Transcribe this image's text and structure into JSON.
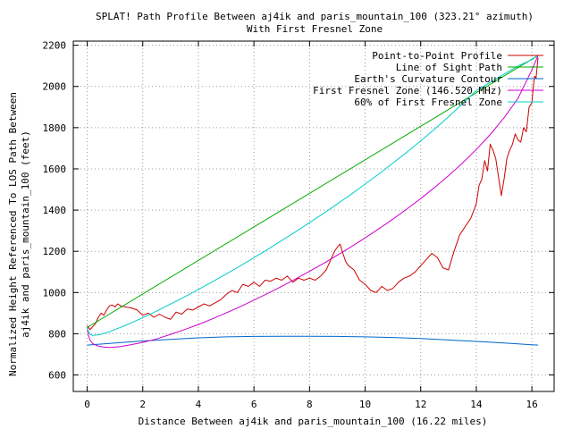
{
  "chart_data": {
    "type": "line",
    "title": "SPLAT! Path Profile Between aj4ik and paris_mountain_100 (323.21° azimuth)",
    "subtitle": "With First Fresnel Zone",
    "xlabel": "Distance Between aj4ik and paris_mountain_100 (16.22 miles)",
    "ylabel": "Normalized Height Referenced To LOS Path Between",
    "ylabel2": "aj4ik and paris_mountain_100 (feet)",
    "xlim": [
      -0.5,
      16.8
    ],
    "ylim": [
      520,
      2220
    ],
    "x_ticks": [
      "0",
      "2",
      "4",
      "6",
      "8",
      "10",
      "12",
      "14",
      "16"
    ],
    "y_ticks": [
      "600",
      "800",
      "1000",
      "1200",
      "1400",
      "1600",
      "1800",
      "2000",
      "2200"
    ],
    "grid": true,
    "legend_position": "top-right",
    "series": [
      {
        "name": "Point-to-Point Profile",
        "color": "#cc0000",
        "x": [
          0,
          0.1,
          0.2,
          0.3,
          0.4,
          0.5,
          0.6,
          0.7,
          0.8,
          0.9,
          1.0,
          1.1,
          1.2,
          1.4,
          1.6,
          1.8,
          2.0,
          2.2,
          2.4,
          2.6,
          2.8,
          3.0,
          3.2,
          3.4,
          3.6,
          3.8,
          4.0,
          4.2,
          4.4,
          4.6,
          4.8,
          5.0,
          5.2,
          5.4,
          5.6,
          5.8,
          6.0,
          6.2,
          6.4,
          6.6,
          6.8,
          7.0,
          7.2,
          7.4,
          7.6,
          7.8,
          8.0,
          8.2,
          8.4,
          8.6,
          8.8,
          8.9,
          9.0,
          9.1,
          9.2,
          9.3,
          9.4,
          9.6,
          9.8,
          10.0,
          10.2,
          10.4,
          10.6,
          10.8,
          11.0,
          11.2,
          11.4,
          11.6,
          11.8,
          12.0,
          12.2,
          12.4,
          12.6,
          12.8,
          13.0,
          13.2,
          13.4,
          13.6,
          13.8,
          14.0,
          14.1,
          14.2,
          14.3,
          14.4,
          14.5,
          14.6,
          14.7,
          14.8,
          14.9,
          15.0,
          15.1,
          15.2,
          15.3,
          15.4,
          15.5,
          15.6,
          15.7,
          15.8,
          15.9,
          16.0,
          16.05,
          16.1,
          16.15,
          16.22
        ],
        "values": [
          840,
          820,
          835,
          850,
          880,
          900,
          890,
          915,
          935,
          940,
          930,
          945,
          935,
          930,
          925,
          915,
          890,
          900,
          880,
          895,
          880,
          870,
          905,
          895,
          920,
          915,
          930,
          945,
          935,
          950,
          965,
          990,
          1010,
          1000,
          1040,
          1030,
          1050,
          1030,
          1060,
          1055,
          1070,
          1060,
          1080,
          1050,
          1070,
          1060,
          1070,
          1060,
          1080,
          1110,
          1170,
          1200,
          1220,
          1235,
          1190,
          1150,
          1130,
          1110,
          1060,
          1040,
          1010,
          1000,
          1030,
          1010,
          1020,
          1050,
          1070,
          1080,
          1100,
          1130,
          1160,
          1190,
          1170,
          1120,
          1110,
          1200,
          1280,
          1320,
          1360,
          1430,
          1520,
          1550,
          1640,
          1590,
          1720,
          1690,
          1650,
          1560,
          1470,
          1550,
          1650,
          1690,
          1720,
          1770,
          1740,
          1730,
          1800,
          1780,
          1900,
          1920,
          2000,
          2050,
          2040,
          2140
        ]
      },
      {
        "name": "Line of Sight Path",
        "color": "#00aa00",
        "x": [
          0,
          16.22
        ],
        "values": [
          830,
          2150
        ]
      },
      {
        "name": "Earth's Curvature Contour",
        "color": "#0066cc",
        "x": [
          0,
          1,
          2,
          3,
          4,
          5,
          6,
          7,
          8,
          9,
          10,
          11,
          12,
          13,
          14,
          15,
          16,
          16.22
        ],
        "values": [
          745,
          755,
          765,
          773,
          780,
          785,
          787,
          788,
          788,
          787,
          785,
          782,
          777,
          770,
          763,
          755,
          747,
          745
        ]
      },
      {
        "name": "First Fresnel Zone (146.520 MHz)",
        "color": "#cc00cc",
        "x": [
          0,
          0.05,
          0.1,
          0.2,
          0.4,
          0.6,
          0.8,
          1.0,
          1.2,
          1.5,
          2.0,
          2.5,
          3.0,
          3.5,
          4.0,
          4.5,
          5.0,
          5.5,
          6.0,
          6.5,
          7.0,
          7.5,
          8.0,
          8.5,
          9.0,
          9.5,
          10.0,
          10.5,
          11.0,
          11.5,
          12.0,
          12.5,
          13.0,
          13.5,
          14.0,
          14.5,
          15.0,
          15.5,
          16.0,
          16.22
        ],
        "values": [
          830,
          790,
          770,
          752,
          740,
          735,
          734,
          735,
          738,
          745,
          758,
          775,
          797,
          820,
          845,
          872,
          901,
          931,
          963,
          996,
          1030,
          1066,
          1103,
          1141,
          1181,
          1222,
          1265,
          1310,
          1356,
          1405,
          1456,
          1510,
          1567,
          1628,
          1694,
          1767,
          1848,
          1943,
          2080,
          2150
        ]
      },
      {
        "name": "60% of First Fresnel Zone",
        "color": "#00cccc",
        "x": [
          0,
          0.05,
          0.1,
          0.2,
          0.4,
          0.6,
          0.8,
          1.0,
          1.5,
          2.0,
          2.5,
          3.0,
          3.5,
          4.0,
          4.5,
          5.0,
          5.5,
          6.0,
          6.5,
          7.0,
          7.5,
          8.0,
          8.5,
          9.0,
          9.5,
          10.0,
          10.5,
          11.0,
          11.5,
          12.0,
          12.5,
          13.0,
          13.5,
          14.0,
          14.5,
          15.0,
          15.5,
          16.0,
          16.22
        ],
        "values": [
          830,
          808,
          798,
          792,
          795,
          801,
          810,
          820,
          848,
          878,
          910,
          944,
          979,
          1015,
          1052,
          1090,
          1129,
          1169,
          1210,
          1252,
          1295,
          1339,
          1384,
          1430,
          1477,
          1526,
          1576,
          1628,
          1681,
          1736,
          1793,
          1853,
          1915,
          1980,
          2020,
          2060,
          2100,
          2130,
          2150
        ]
      }
    ]
  }
}
